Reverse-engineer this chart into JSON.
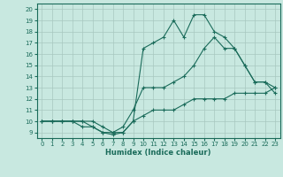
{
  "xlabel": "Humidex (Indice chaleur)",
  "ylabel": "",
  "xlim": [
    -0.5,
    23.5
  ],
  "ylim": [
    8.5,
    20.5
  ],
  "xticks": [
    0,
    1,
    2,
    3,
    4,
    5,
    6,
    7,
    8,
    9,
    10,
    11,
    12,
    13,
    14,
    15,
    16,
    17,
    18,
    19,
    20,
    21,
    22,
    23
  ],
  "yticks": [
    9,
    10,
    11,
    12,
    13,
    14,
    15,
    16,
    17,
    18,
    19,
    20
  ],
  "bg_color": "#c8e8e0",
  "grid_color": "#a8c8c0",
  "line_color": "#1a6b5a",
  "line1_x": [
    0,
    1,
    2,
    3,
    4,
    5,
    6,
    7,
    8,
    9,
    10,
    11,
    12,
    13,
    14,
    15,
    16,
    17,
    18,
    19,
    20,
    21,
    22,
    23
  ],
  "line1_y": [
    10,
    10,
    10,
    10,
    10,
    10,
    9.5,
    9,
    9,
    10,
    10.5,
    11,
    11,
    11,
    11.5,
    12,
    12,
    12,
    12,
    12.5,
    12.5,
    12.5,
    12.5,
    13
  ],
  "line2_x": [
    0,
    1,
    2,
    3,
    4,
    5,
    6,
    7,
    8,
    9,
    10,
    11,
    12,
    13,
    14,
    15,
    16,
    17,
    18,
    19,
    20,
    21,
    22,
    23
  ],
  "line2_y": [
    10,
    10,
    10,
    10,
    10,
    9.5,
    9,
    9,
    9.5,
    11,
    13,
    13,
    13,
    13.5,
    14,
    15,
    16.5,
    17.5,
    16.5,
    16.5,
    15,
    13.5,
    13.5,
    13
  ],
  "line3_x": [
    0,
    1,
    2,
    3,
    4,
    5,
    6,
    7,
    8,
    9,
    10,
    11,
    12,
    13,
    14,
    15,
    16,
    17,
    18,
    19,
    20,
    21,
    22,
    23
  ],
  "line3_y": [
    10,
    10,
    10,
    10,
    9.5,
    9.5,
    9,
    8.8,
    9,
    10,
    16.5,
    17,
    17.5,
    19,
    17.5,
    19.5,
    19.5,
    18,
    17.5,
    16.5,
    15,
    13.5,
    13.5,
    12.5
  ]
}
